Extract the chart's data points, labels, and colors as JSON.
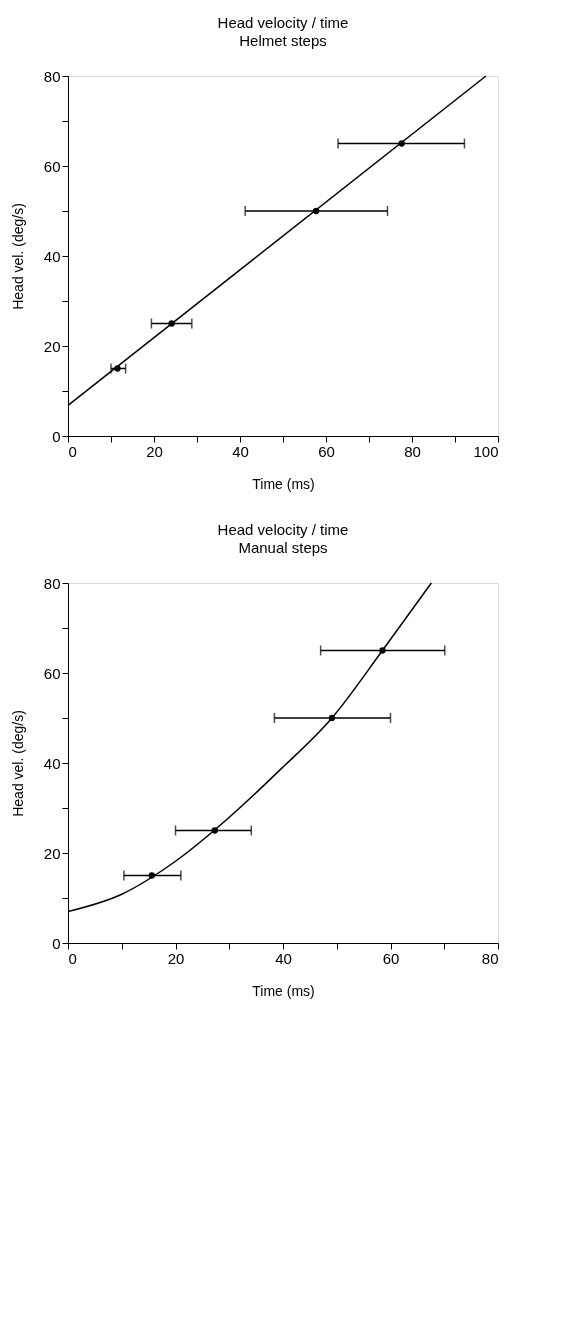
{
  "chart_data": [
    {
      "type": "scatter",
      "title": "Head velocity / time",
      "subtitle": "Helmet steps",
      "xlabel": "Time (ms)",
      "ylabel": "Head vel. (deg/s)",
      "xlim": [
        0,
        100
      ],
      "ylim": [
        0,
        80
      ],
      "xticks": [
        0,
        {
          "value": 10,
          "label": null
        },
        20,
        {
          "value": 30,
          "label": null
        },
        40,
        {
          "value": 50,
          "label": null
        },
        60,
        {
          "value": 70,
          "label": null
        },
        80,
        {
          "value": 90,
          "label": null
        },
        100
      ],
      "yticks": [
        0,
        {
          "value": 10,
          "label": null
        },
        20,
        {
          "value": 30,
          "label": null
        },
        40,
        {
          "value": 50,
          "label": null
        },
        60,
        {
          "value": 70,
          "label": null
        },
        80
      ],
      "grid": false,
      "series": [
        {
          "color": "#000000",
          "marker": "circle",
          "x": [
            11.5,
            24.1,
            57.7,
            77.6
          ],
          "values": [
            15,
            25,
            50,
            65
          ],
          "xerrors": [
            [
              10.0,
              13.4
            ],
            [
              19.4,
              28.8
            ],
            [
              41.2,
              74.3
            ],
            [
              62.8,
              92.2
            ]
          ]
        },
        {
          "type": "line",
          "color": "#000000",
          "marker": "none",
          "line_style": "solid",
          "x": [
            0,
            97.2
          ],
          "values": [
            6.8,
            80
          ]
        }
      ]
    },
    {
      "type": "scatter",
      "title": "Head velocity / time",
      "subtitle": "Manual steps",
      "xlabel": "Time (ms)",
      "ylabel": "Head vel. (deg/s)",
      "xlim": [
        0,
        80
      ],
      "ylim": [
        0,
        80
      ],
      "xticks": [
        0,
        {
          "value": 10,
          "label": null
        },
        20,
        {
          "value": 30,
          "label": null
        },
        40,
        {
          "value": 50,
          "label": null
        },
        60,
        {
          "value": 70,
          "label": null
        },
        80
      ],
      "yticks": [
        0,
        {
          "value": 10,
          "label": null
        },
        20,
        {
          "value": 30,
          "label": null
        },
        40,
        {
          "value": 50,
          "label": null
        },
        60,
        {
          "value": 70,
          "label": null
        },
        80
      ],
      "grid": false,
      "series": [
        {
          "color": "#000000",
          "marker": "circle",
          "x": [
            15.6,
            27.3,
            49.1,
            58.5
          ],
          "values": [
            15,
            25,
            50,
            65
          ],
          "xerrors": [
            [
              10.4,
              21.0
            ],
            [
              20.0,
              34.1
            ],
            [
              38.4,
              60.0
            ],
            [
              47.0,
              70.1
            ]
          ]
        },
        {
          "type": "line",
          "color": "#000000",
          "marker": "none",
          "line_style": "solid",
          "x": [
            0,
            10.1,
            19.8,
            29.6,
            39.3,
            49.1,
            58.5,
            67.6
          ],
          "values": [
            7.0,
            10.9,
            18.0,
            27.5,
            38.3,
            50,
            65,
            80
          ]
        }
      ]
    }
  ]
}
